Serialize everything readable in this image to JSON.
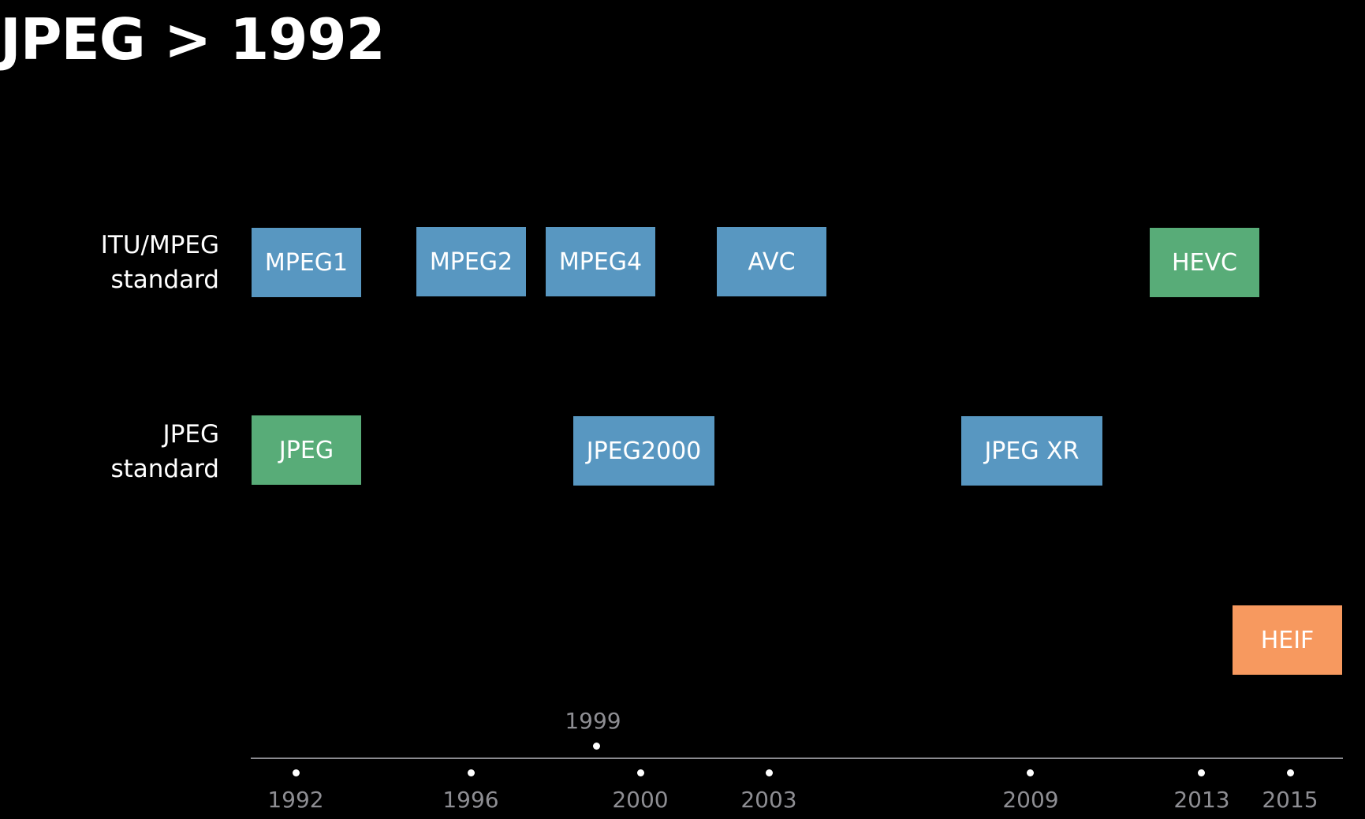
{
  "title": "JPEG > 1992",
  "rows": {
    "itu_mpeg": {
      "line1": "ITU/MPEG",
      "line2": "standard"
    },
    "jpeg": {
      "line1": "JPEG",
      "line2": "standard"
    }
  },
  "colors": {
    "blue": "#5897c1",
    "green": "#58ac78",
    "orange": "#f7995f",
    "axis": "#8a8a8f",
    "tick_label": "#8e8e93"
  },
  "standards": [
    {
      "name": "MPEG1",
      "row": "itu_mpeg",
      "year": 1992,
      "color": "#5897c1"
    },
    {
      "name": "MPEG2",
      "row": "itu_mpeg",
      "year": 1996,
      "color": "#5897c1"
    },
    {
      "name": "MPEG4",
      "row": "itu_mpeg",
      "year": 1999,
      "color": "#5897c1"
    },
    {
      "name": "AVC",
      "row": "itu_mpeg",
      "year": 2003,
      "color": "#5897c1"
    },
    {
      "name": "HEVC",
      "row": "itu_mpeg",
      "year": 2013,
      "color": "#58ac78"
    },
    {
      "name": "JPEG",
      "row": "jpeg",
      "year": 1992,
      "color": "#58ac78"
    },
    {
      "name": "JPEG2000",
      "row": "jpeg",
      "year": 2000,
      "color": "#5897c1"
    },
    {
      "name": "JPEG XR",
      "row": "jpeg",
      "year": 2009,
      "color": "#5897c1"
    },
    {
      "name": "HEIF",
      "row": "other",
      "year": 2015,
      "color": "#f7995f"
    }
  ],
  "timeline": {
    "years_below": [
      "1992",
      "1996",
      "2000",
      "2003",
      "2009",
      "2013",
      "2015"
    ],
    "years_above": [
      "1999"
    ]
  }
}
